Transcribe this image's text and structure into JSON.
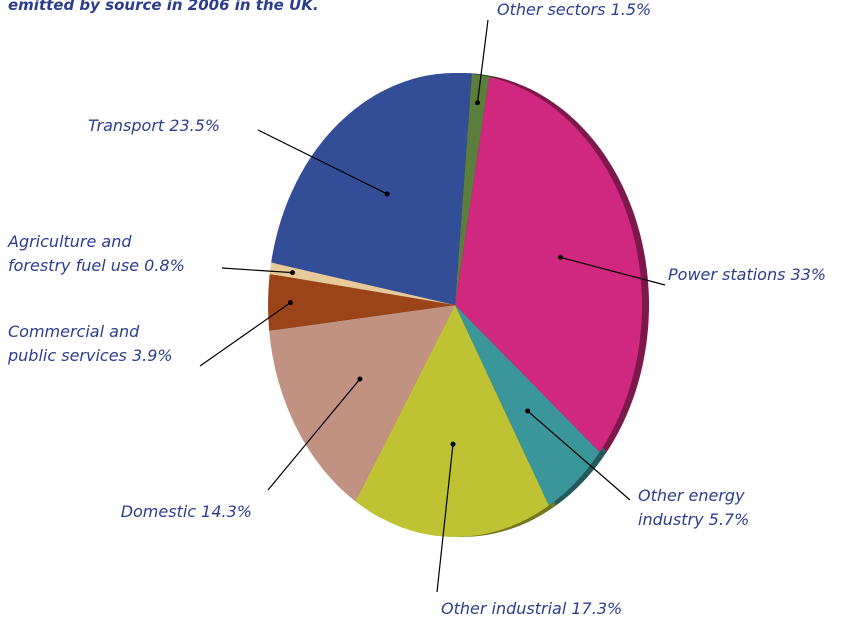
{
  "chart_data": {
    "type": "pie",
    "title": "emitted by source in 2006 in the UK.",
    "categories": [
      "Other sectors",
      "Power stations",
      "Other energy\nindustry",
      "Other industrial",
      "Domestic",
      "Commercial and\npublic services",
      "Agriculture and\nforestry fuel use",
      "Transport"
    ],
    "values": [
      1.5,
      33,
      5.7,
      17.3,
      14.3,
      3.9,
      0.8,
      23.5
    ],
    "value_labels": [
      "1.5%",
      "33%",
      "5.7%",
      "17.3%",
      "14.3%",
      "3.9%",
      "0.8%",
      "23.5%"
    ],
    "colors": [
      "#5a7f3a",
      "#d0287f",
      "#3a9699",
      "#bfc232",
      "#c19282",
      "#9b4419",
      "#e8c99a",
      "#344d97"
    ]
  }
}
